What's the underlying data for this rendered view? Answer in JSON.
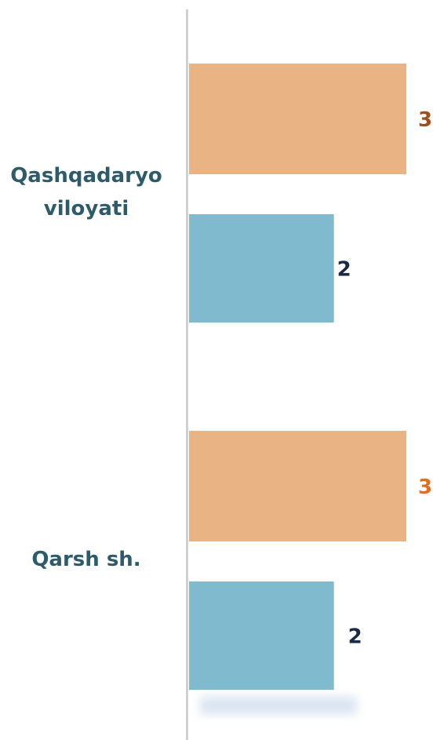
{
  "chart_data": {
    "type": "hbar",
    "categories": [
      "Qashqadaryo viloyati",
      "Qarsh sh."
    ],
    "series": [
      {
        "color": "#eab384",
        "values": [
          3,
          3
        ],
        "label_colors": [
          "#a0501a",
          "#e07020"
        ]
      },
      {
        "color": "#80bace",
        "values": [
          2,
          2
        ],
        "label_colors": [
          "#1a2a44",
          "#1a2a44"
        ]
      }
    ],
    "xlim": [
      0,
      3
    ]
  }
}
